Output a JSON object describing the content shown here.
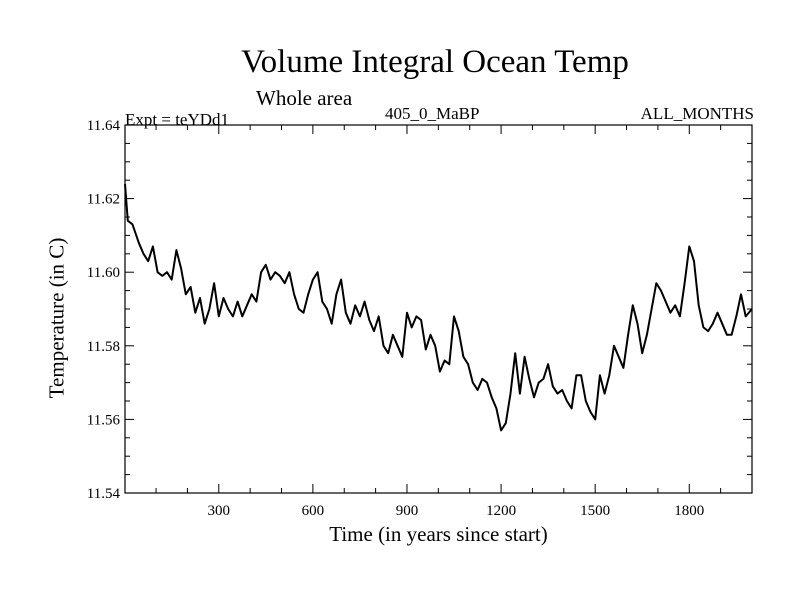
{
  "chart_data": {
    "type": "line",
    "title": "Volume Integral Ocean Temp",
    "subtitle": "Whole area",
    "annotations": {
      "experiment": "Expt = teYDd1",
      "period": "405_0_MaBP",
      "months": "ALL_MONTHS"
    },
    "xlabel": "Time (in years since start)",
    "ylabel": "Temperature (in C)",
    "xlim": [
      1,
      2000
    ],
    "ylim": [
      11.54,
      11.64
    ],
    "x_ticks": [
      300,
      600,
      900,
      1200,
      1500,
      1800
    ],
    "y_ticks": [
      "11.54",
      "11.56",
      "11.58",
      "11.60",
      "11.62",
      "11.64"
    ],
    "grid": false,
    "series": [
      {
        "name": "Volume integral ocean temperature",
        "color": "#000000",
        "x": [
          1,
          10,
          25,
          45,
          60,
          75,
          90,
          105,
          120,
          135,
          150,
          165,
          180,
          195,
          210,
          225,
          240,
          255,
          270,
          285,
          300,
          315,
          330,
          345,
          360,
          375,
          390,
          405,
          420,
          435,
          450,
          465,
          480,
          495,
          510,
          525,
          540,
          555,
          570,
          585,
          600,
          615,
          630,
          645,
          660,
          675,
          690,
          705,
          720,
          735,
          750,
          765,
          780,
          795,
          810,
          825,
          840,
          855,
          870,
          885,
          900,
          915,
          930,
          945,
          960,
          975,
          990,
          1005,
          1020,
          1035,
          1050,
          1065,
          1080,
          1095,
          1110,
          1125,
          1140,
          1155,
          1170,
          1185,
          1200,
          1215,
          1230,
          1245,
          1260,
          1275,
          1290,
          1305,
          1320,
          1335,
          1350,
          1365,
          1380,
          1395,
          1410,
          1425,
          1440,
          1455,
          1470,
          1485,
          1500,
          1515,
          1530,
          1545,
          1560,
          1575,
          1590,
          1605,
          1620,
          1635,
          1650,
          1665,
          1680,
          1695,
          1710,
          1725,
          1740,
          1755,
          1770,
          1785,
          1800,
          1815,
          1830,
          1845,
          1860,
          1875,
          1890,
          1905,
          1920,
          1935,
          1950,
          1965,
          1980,
          2000
        ],
        "values": [
          11.624,
          11.614,
          11.613,
          11.608,
          11.605,
          11.603,
          11.607,
          11.6,
          11.599,
          11.6,
          11.598,
          11.606,
          11.601,
          11.594,
          11.596,
          11.589,
          11.593,
          11.586,
          11.59,
          11.597,
          11.588,
          11.593,
          11.59,
          11.588,
          11.592,
          11.588,
          11.591,
          11.594,
          11.592,
          11.6,
          11.602,
          11.598,
          11.6,
          11.599,
          11.597,
          11.6,
          11.594,
          11.59,
          11.589,
          11.594,
          11.598,
          11.6,
          11.592,
          11.59,
          11.586,
          11.594,
          11.598,
          11.589,
          11.586,
          11.591,
          11.588,
          11.592,
          11.587,
          11.584,
          11.588,
          11.58,
          11.578,
          11.583,
          11.58,
          11.577,
          11.589,
          11.585,
          11.588,
          11.587,
          11.579,
          11.583,
          11.58,
          11.573,
          11.576,
          11.575,
          11.588,
          11.584,
          11.577,
          11.575,
          11.57,
          11.568,
          11.571,
          11.57,
          11.566,
          11.563,
          11.557,
          11.559,
          11.567,
          11.578,
          11.567,
          11.577,
          11.571,
          11.566,
          11.57,
          11.571,
          11.575,
          11.569,
          11.567,
          11.568,
          11.565,
          11.563,
          11.572,
          11.572,
          11.565,
          11.562,
          11.56,
          11.572,
          11.567,
          11.572,
          11.58,
          11.577,
          11.574,
          11.583,
          11.591,
          11.586,
          11.578,
          11.583,
          11.59,
          11.597,
          11.595,
          11.592,
          11.589,
          11.591,
          11.588,
          11.597,
          11.607,
          11.603,
          11.591,
          11.585,
          11.584,
          11.586,
          11.589,
          11.586,
          11.583,
          11.583,
          11.588,
          11.594,
          11.588,
          11.59
        ]
      }
    ]
  }
}
